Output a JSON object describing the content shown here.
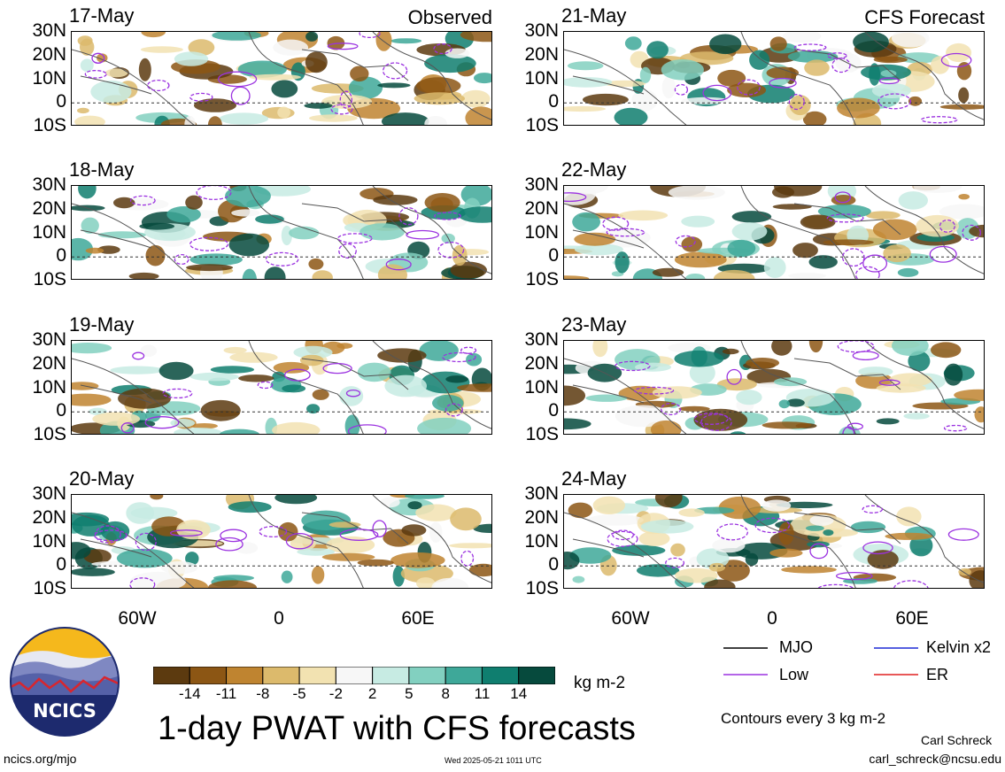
{
  "panels": [
    {
      "date": "17-May",
      "label": "Observed"
    },
    {
      "date": "21-May",
      "label": "CFS Forecast"
    },
    {
      "date": "18-May",
      "label": ""
    },
    {
      "date": "22-May",
      "label": ""
    },
    {
      "date": "19-May",
      "label": ""
    },
    {
      "date": "23-May",
      "label": ""
    },
    {
      "date": "20-May",
      "label": ""
    },
    {
      "date": "24-May",
      "label": ""
    }
  ],
  "lat_labels": [
    "30N",
    "20N",
    "10N",
    "0",
    "10S"
  ],
  "lon_labels": [
    "60W",
    "0",
    "60E"
  ],
  "colorbar": {
    "ticks": [
      "-14",
      "-11",
      "-8",
      "-5",
      "-2",
      "2",
      "5",
      "8",
      "11",
      "14"
    ],
    "colors": [
      "#5c3a0f",
      "#8c5614",
      "#bf8430",
      "#dcba6c",
      "#f2e2b1",
      "#f7f7f7",
      "#c7ebe3",
      "#82d0c0",
      "#3ea899",
      "#0f7e6f",
      "#064a3d"
    ],
    "units": "kg m-2"
  },
  "title": "1-day PWAT with CFS forecasts",
  "legend": [
    {
      "label": "MJO",
      "color": "#000000"
    },
    {
      "label": "Kelvin x2",
      "color": "#1f2bd6"
    },
    {
      "label": "Low",
      "color": "#9b32e0"
    },
    {
      "label": "ER",
      "color": "#e02020"
    }
  ],
  "contour_note": "Contours every 3 kg m-2",
  "author": "Carl Schreck",
  "email": "carl_schreck@ncsu.edu",
  "website": "ncics.org/mjo",
  "timestamp": "Wed 2025-05-21 1011 UTC",
  "logo_text": "NCICS"
}
